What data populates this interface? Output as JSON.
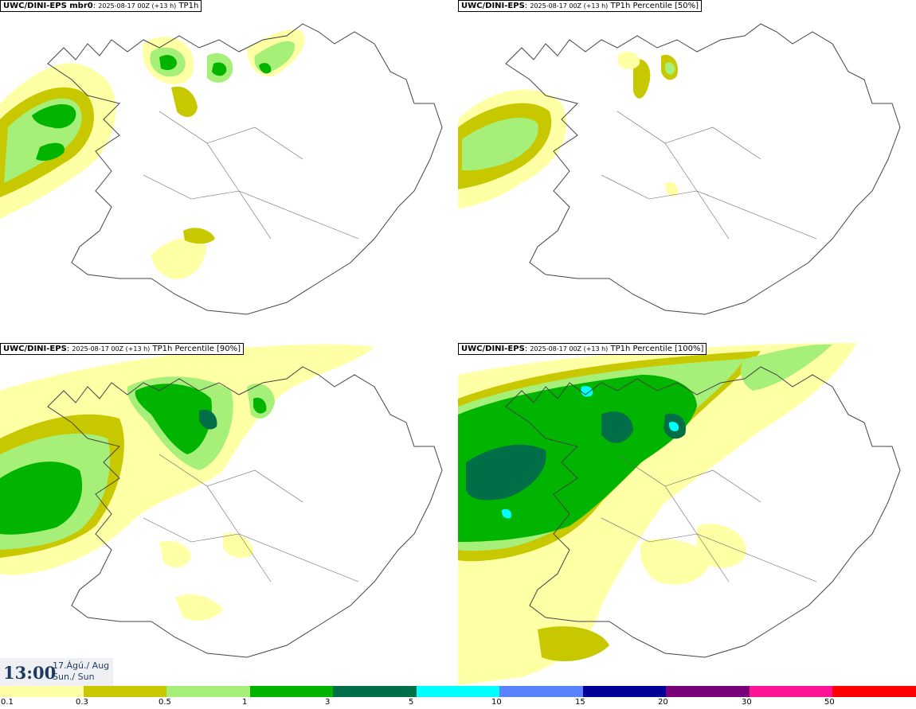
{
  "panels": [
    {
      "model": "UWC/DINI-EPS mbr0",
      "run": "2025-08-17 00Z (+13 h)",
      "field": "TP1h"
    },
    {
      "model": "UWC/DINI-EPS",
      "run": "2025-08-17 00Z (+13 h)",
      "field": "TP1h Percentile [50%]"
    },
    {
      "model": "UWC/DINI-EPS",
      "run": "2025-08-17 00Z (+13 h)",
      "field": "TP1h Percentile [90%]"
    },
    {
      "model": "UWC/DINI-EPS",
      "run": "2025-08-17 00Z (+13 h)",
      "field": "TP1h Percentile [100%]"
    }
  ],
  "time": {
    "hour": "13:00",
    "date_line1": "17.Ágú./ Aug",
    "date_line2": "Sun./ Sun"
  },
  "legend": {
    "colors": [
      "#ffffa6",
      "#c8c800",
      "#a6f07a",
      "#00b400",
      "#006e46",
      "#00ffff",
      "#5a82ff",
      "#000096",
      "#780078",
      "#ff1493",
      "#ff0000"
    ],
    "ticks": [
      "0.1",
      "0.3",
      "0.5",
      "1",
      "3",
      "5",
      "10",
      "15",
      "20",
      "30",
      "50"
    ]
  },
  "colors": {
    "light_yellow": "#ffffa6",
    "olive": "#c8c800",
    "light_green": "#a6f07a",
    "green": "#00b400",
    "dark_green": "#006e46",
    "cyan": "#00ffff"
  }
}
